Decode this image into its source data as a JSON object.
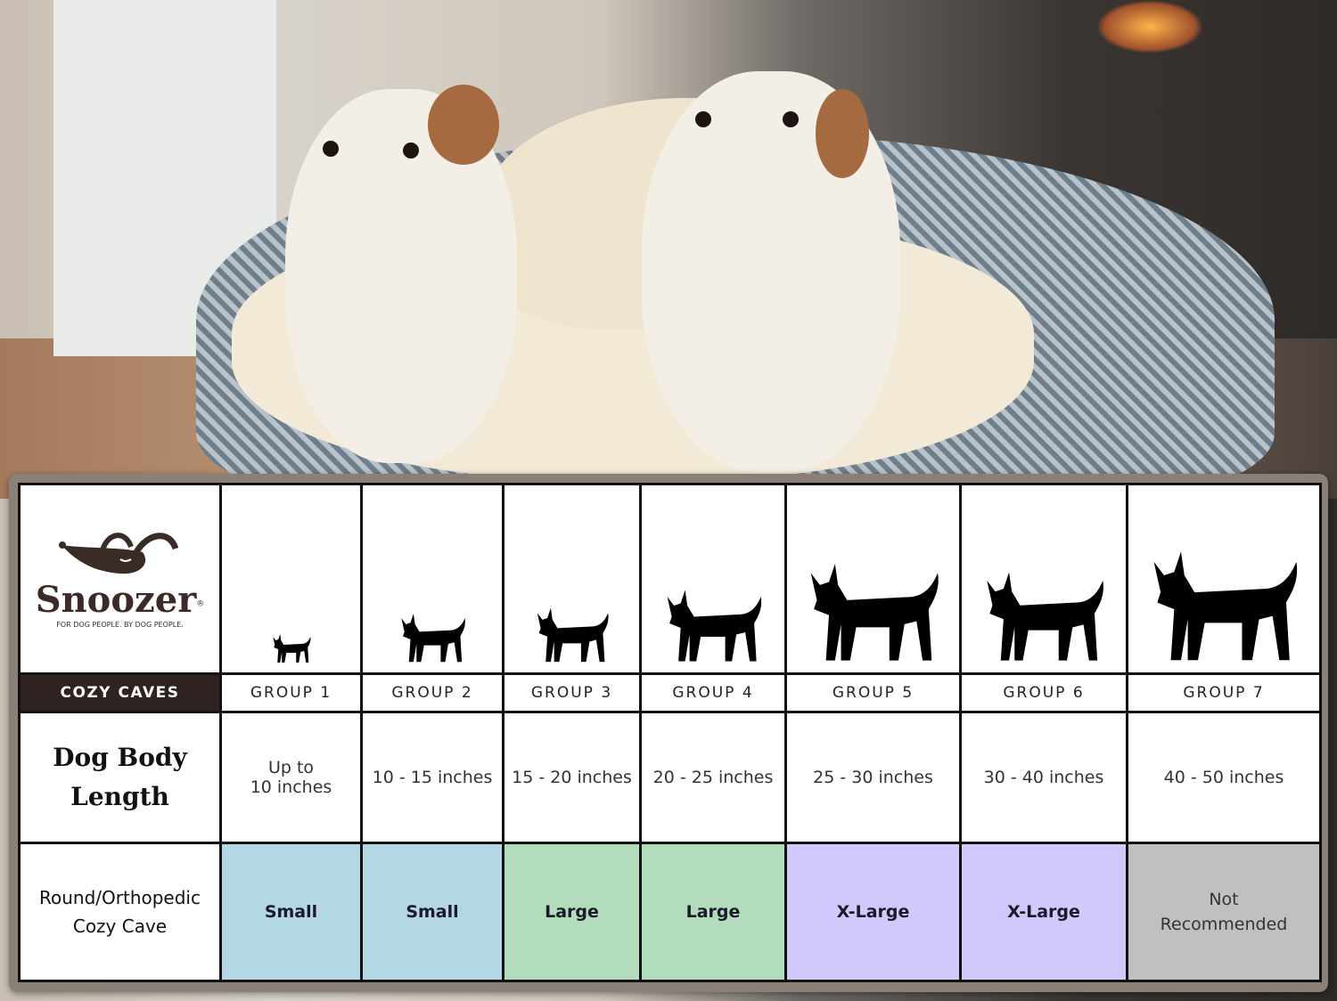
{
  "brand": {
    "name": "Snoozer",
    "registered": "®",
    "tagline": "FOR DOG PEOPLE. BY DOG PEOPLE."
  },
  "table": {
    "product_header": "COZY CAVES",
    "groups": [
      "GROUP 1",
      "GROUP 2",
      "GROUP 3",
      "GROUP 4",
      "GROUP 5",
      "GROUP 6",
      "GROUP 7"
    ],
    "dog_icons": [
      "chihuahua-silhouette",
      "pomeranian-silhouette",
      "boston-terrier-silhouette",
      "shiba-silhouette",
      "golden-retriever-silhouette",
      "doberman-silhouette",
      "great-dane-silhouette"
    ],
    "length_label_1": "Dog Body",
    "length_label_2": "Length",
    "lengths": [
      [
        "Up to",
        "10 inches"
      ],
      [
        "10 - 15 inches"
      ],
      [
        "15 - 20 inches"
      ],
      [
        "20 - 25 inches"
      ],
      [
        "25 - 30 inches"
      ],
      [
        "30 - 40 inches"
      ],
      [
        "40 - 50 inches"
      ]
    ],
    "size_label_1": "Round/Orthopedic",
    "size_label_2": "Cozy Cave",
    "sizes": [
      [
        "Small"
      ],
      [
        "Small"
      ],
      [
        "Large"
      ],
      [
        "Large"
      ],
      [
        "X-Large"
      ],
      [
        "X-Large"
      ],
      [
        "Not",
        "Recommended"
      ]
    ],
    "size_colors": [
      "#b3d7e3",
      "#b3d7e3",
      "#b3dcbd",
      "#b3dcbd",
      "#d2c8fb",
      "#d2c8fb",
      "#c0c0c0"
    ]
  },
  "colors": {
    "header_dark": "#2e2320",
    "brand": "#3a2b27"
  }
}
